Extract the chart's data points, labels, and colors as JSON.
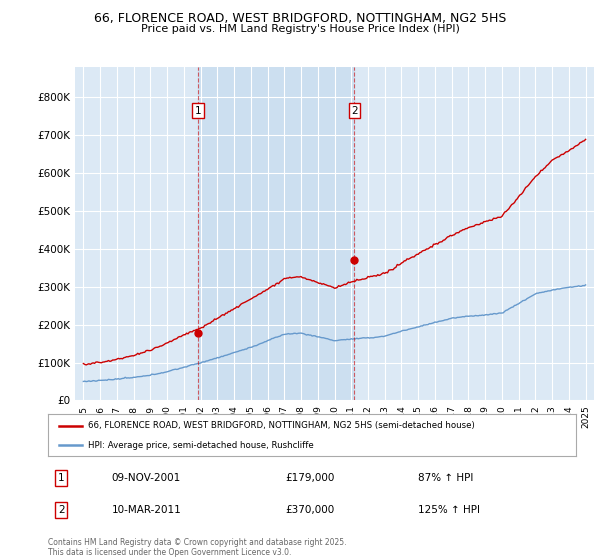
{
  "title": "66, FLORENCE ROAD, WEST BRIDGFORD, NOTTINGHAM, NG2 5HS",
  "subtitle": "Price paid vs. HM Land Registry's House Price Index (HPI)",
  "legend_property": "66, FLORENCE ROAD, WEST BRIDGFORD, NOTTINGHAM, NG2 5HS (semi-detached house)",
  "legend_hpi": "HPI: Average price, semi-detached house, Rushcliffe",
  "transaction1_date": "09-NOV-2001",
  "transaction1_price": "£179,000",
  "transaction1_hpi": "87% ↑ HPI",
  "transaction2_date": "10-MAR-2011",
  "transaction2_price": "£370,000",
  "transaction2_hpi": "125% ↑ HPI",
  "footer": "Contains HM Land Registry data © Crown copyright and database right 2025.\nThis data is licensed under the Open Government Licence v3.0.",
  "property_color": "#cc0000",
  "hpi_color": "#6699cc",
  "shade_color": "#ccdff0",
  "transaction1_x": 2001.86,
  "transaction2_x": 2011.19,
  "transaction1_y": 179000,
  "transaction2_y": 370000,
  "ylim_min": 0,
  "ylim_max": 880000,
  "xlim_min": 1994.5,
  "xlim_max": 2025.5,
  "yticks": [
    0,
    100000,
    200000,
    300000,
    400000,
    500000,
    600000,
    700000,
    800000
  ],
  "ytick_labels": [
    "£0",
    "£100K",
    "£200K",
    "£300K",
    "£400K",
    "£500K",
    "£600K",
    "£700K",
    "£800K"
  ],
  "xticks": [
    1995,
    1996,
    1997,
    1998,
    1999,
    2000,
    2001,
    2002,
    2003,
    2004,
    2005,
    2006,
    2007,
    2008,
    2009,
    2010,
    2011,
    2012,
    2013,
    2014,
    2015,
    2016,
    2017,
    2018,
    2019,
    2020,
    2021,
    2022,
    2023,
    2024,
    2025
  ],
  "background_color": "#ffffff",
  "plot_bg_color": "#dce9f5",
  "grid_color": "#ffffff"
}
